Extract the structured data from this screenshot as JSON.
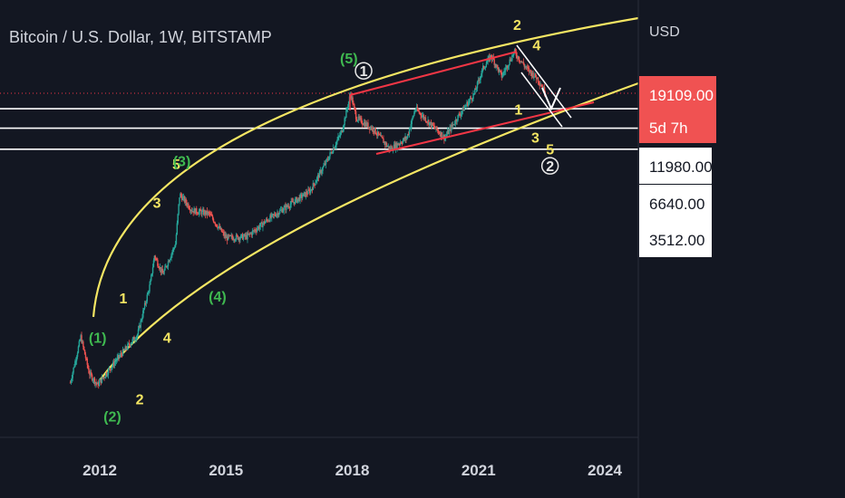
{
  "chart_data": {
    "type": "line",
    "title": "Bitcoin / U.S. Dollar, 1W, BITSTAMP",
    "currency_label": "USD",
    "x_axis": {
      "ticks": [
        "2012",
        "2015",
        "2018",
        "2021",
        "2024"
      ],
      "range": [
        2011.3,
        2024.9
      ]
    },
    "y_axis": {
      "scale": "log",
      "range": [
        1,
        100000
      ],
      "price_labels": [
        {
          "value": "19109.00",
          "countdown": "5d 7h",
          "style": "current"
        },
        {
          "value": "11980.00",
          "style": "level"
        },
        {
          "value": "6640.00",
          "style": "level"
        },
        {
          "value": "3512.00",
          "style": "level"
        }
      ]
    },
    "series": [
      {
        "type": "candlestick",
        "approx_closes": [
          {
            "x": 2011.3,
            "y": 3
          },
          {
            "x": 2011.55,
            "y": 12
          },
          {
            "x": 2011.75,
            "y": 4
          },
          {
            "x": 2011.95,
            "y": 2.8
          },
          {
            "x": 2012.4,
            "y": 6
          },
          {
            "x": 2012.9,
            "y": 13
          },
          {
            "x": 2013.2,
            "y": 60
          },
          {
            "x": 2013.3,
            "y": 140
          },
          {
            "x": 2013.5,
            "y": 80
          },
          {
            "x": 2013.8,
            "y": 200
          },
          {
            "x": 2013.9,
            "y": 900
          },
          {
            "x": 2014.2,
            "y": 550
          },
          {
            "x": 2014.6,
            "y": 500
          },
          {
            "x": 2015.0,
            "y": 240
          },
          {
            "x": 2015.5,
            "y": 250
          },
          {
            "x": 2016.0,
            "y": 420
          },
          {
            "x": 2016.5,
            "y": 650
          },
          {
            "x": 2017.0,
            "y": 1000
          },
          {
            "x": 2017.4,
            "y": 2500
          },
          {
            "x": 2017.75,
            "y": 6000
          },
          {
            "x": 2017.96,
            "y": 19000
          },
          {
            "x": 2018.1,
            "y": 9000
          },
          {
            "x": 2018.5,
            "y": 6500
          },
          {
            "x": 2018.9,
            "y": 3500
          },
          {
            "x": 2019.3,
            "y": 5000
          },
          {
            "x": 2019.5,
            "y": 12000
          },
          {
            "x": 2019.9,
            "y": 7200
          },
          {
            "x": 2020.2,
            "y": 5000
          },
          {
            "x": 2020.5,
            "y": 9200
          },
          {
            "x": 2020.9,
            "y": 19000
          },
          {
            "x": 2021.1,
            "y": 40000
          },
          {
            "x": 2021.3,
            "y": 60000
          },
          {
            "x": 2021.55,
            "y": 32000
          },
          {
            "x": 2021.85,
            "y": 67000
          },
          {
            "x": 2022.15,
            "y": 40000
          },
          {
            "x": 2022.4,
            "y": 30000
          },
          {
            "x": 2022.6,
            "y": 19109
          }
        ]
      }
    ],
    "horizontal_levels": [
      11980,
      6640,
      3512
    ],
    "current_price": 19109,
    "wave_labels": [
      {
        "text": "(5)",
        "color": "#3fb950",
        "x": 2017.92,
        "y": 47000
      },
      {
        "text": "1",
        "color": "#e8e8e8",
        "circled": true,
        "x": 2018.27,
        "y": 32000
      },
      {
        "text": "2",
        "color": "#f5e663",
        "x": 2021.92,
        "y": 130000
      },
      {
        "text": "4",
        "color": "#f5e663",
        "x": 2022.38,
        "y": 70000
      },
      {
        "text": "1",
        "color": "#f5e663",
        "x": 2021.95,
        "y": 10000
      },
      {
        "text": "3",
        "color": "#f5e663",
        "x": 2022.35,
        "y": 4300
      },
      {
        "text": "5",
        "color": "#f5e663",
        "x": 2022.7,
        "y": 3000
      },
      {
        "text": "2",
        "color": "#e8e8e8",
        "circled": true,
        "x": 2022.7,
        "y": 1800
      },
      {
        "text": "5",
        "color": "#f5e663",
        "x": 2013.82,
        "y": 1900
      },
      {
        "text": "(3)",
        "color": "#3fb950",
        "x": 2013.95,
        "y": 2100
      },
      {
        "text": "3",
        "color": "#f5e663",
        "x": 2013.36,
        "y": 600
      },
      {
        "text": "1",
        "color": "#f5e663",
        "x": 2012.56,
        "y": 33
      },
      {
        "text": "(4)",
        "color": "#3fb950",
        "x": 2014.8,
        "y": 35
      },
      {
        "text": "4",
        "color": "#f5e663",
        "x": 2013.6,
        "y": 10
      },
      {
        "text": "(1)",
        "color": "#3fb950",
        "x": 2011.95,
        "y": 10
      },
      {
        "text": "2",
        "color": "#f5e663",
        "x": 2012.95,
        "y": 1.55
      },
      {
        "text": "(2)",
        "color": "#3fb950",
        "x": 2012.3,
        "y": 0.92
      }
    ],
    "colors": {
      "background": "#131722",
      "candle_up": "#26a69a",
      "candle_down": "#ef5350",
      "arc": "#f5e663",
      "channel": "#f23645",
      "levels": "#ffffff",
      "axis_text": "#d1d4dc",
      "price_label_bg": "#f05252"
    },
    "grid": false,
    "legend": "none"
  }
}
